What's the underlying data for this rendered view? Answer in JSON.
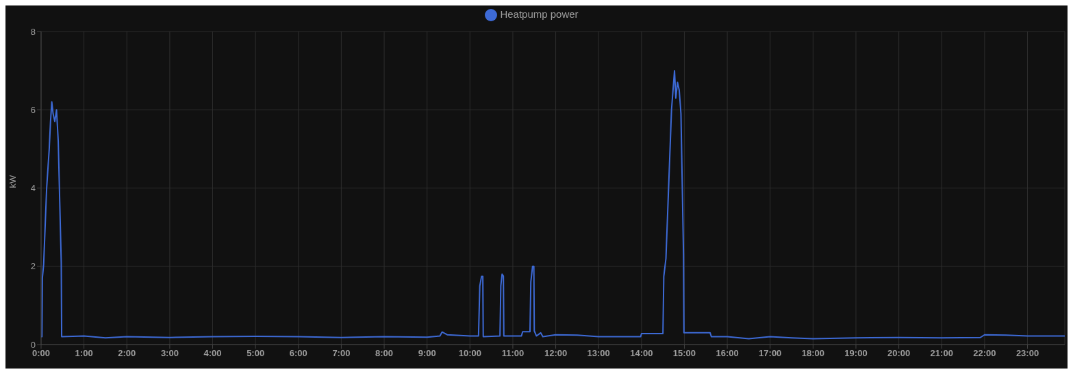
{
  "chart_data": {
    "type": "line",
    "ylabel": "kW",
    "xlim": [
      0,
      23.87
    ],
    "xticks": [
      {
        "value": 0,
        "label": "0:00"
      },
      {
        "value": 1,
        "label": "1:00"
      },
      {
        "value": 2,
        "label": "2:00"
      },
      {
        "value": 3,
        "label": "3:00"
      },
      {
        "value": 4,
        "label": "4:00"
      },
      {
        "value": 5,
        "label": "5:00"
      },
      {
        "value": 6,
        "label": "6:00"
      },
      {
        "value": 7,
        "label": "7:00"
      },
      {
        "value": 8,
        "label": "8:00"
      },
      {
        "value": 9,
        "label": "9:00"
      },
      {
        "value": 10,
        "label": "10:00"
      },
      {
        "value": 11,
        "label": "11:00"
      },
      {
        "value": 12,
        "label": "12:00"
      },
      {
        "value": 13,
        "label": "13:00"
      },
      {
        "value": 14,
        "label": "14:00"
      },
      {
        "value": 15,
        "label": "15:00"
      },
      {
        "value": 16,
        "label": "16:00"
      },
      {
        "value": 17,
        "label": "17:00"
      },
      {
        "value": 18,
        "label": "18:00"
      },
      {
        "value": 19,
        "label": "19:00"
      },
      {
        "value": 20,
        "label": "20:00"
      },
      {
        "value": 21,
        "label": "21:00"
      },
      {
        "value": 22,
        "label": "22:00"
      },
      {
        "value": 23,
        "label": "23:00"
      }
    ],
    "ylim": [
      0,
      8
    ],
    "yticks": [
      0,
      2,
      4,
      6,
      8
    ],
    "grid": true,
    "legend": "top",
    "marker": "none",
    "line_style": "solid",
    "x": [
      0,
      0.02,
      0.03,
      0.06,
      0.13,
      0.19,
      0.22,
      0.25,
      0.28,
      0.32,
      0.36,
      0.4,
      0.47,
      0.48,
      1,
      1.5,
      2,
      3,
      4,
      5,
      6,
      7,
      8,
      9,
      9.3,
      9.35,
      9.47,
      10,
      10.2,
      10.23,
      10.27,
      10.3,
      10.31,
      10.7,
      10.72,
      10.75,
      10.78,
      10.79,
      11.2,
      11.23,
      11.4,
      11.42,
      11.46,
      11.49,
      11.5,
      11.55,
      11.65,
      11.7,
      12,
      12.5,
      13,
      13.6,
      13.98,
      14,
      14.5,
      14.52,
      14.57,
      14.7,
      14.77,
      14.8,
      14.84,
      14.88,
      14.92,
      14.98,
      14.99,
      15.6,
      15.63,
      16,
      16.5,
      17,
      17.5,
      18,
      19,
      20,
      21,
      21.9,
      22,
      22.5,
      23,
      23.5,
      23.87
    ],
    "series": [
      {
        "name": "Heatpump power",
        "color": "#3d6ad6",
        "values": [
          0.2,
          0.2,
          1.7,
          2.05,
          4.0,
          5.0,
          5.7,
          6.2,
          5.9,
          5.7,
          6.0,
          5.2,
          2.1,
          0.2,
          0.22,
          0.17,
          0.2,
          0.18,
          0.2,
          0.21,
          0.2,
          0.18,
          0.2,
          0.19,
          0.22,
          0.32,
          0.25,
          0.22,
          0.22,
          1.5,
          1.74,
          1.74,
          0.2,
          0.22,
          1.5,
          1.8,
          1.75,
          0.22,
          0.22,
          0.33,
          0.33,
          1.6,
          2.0,
          2.0,
          0.35,
          0.22,
          0.3,
          0.2,
          0.25,
          0.24,
          0.2,
          0.2,
          0.2,
          0.28,
          0.28,
          1.74,
          2.2,
          6.0,
          7.0,
          6.3,
          6.7,
          6.5,
          5.9,
          2.3,
          0.3,
          0.3,
          0.2,
          0.2,
          0.15,
          0.2,
          0.17,
          0.15,
          0.17,
          0.18,
          0.17,
          0.18,
          0.25,
          0.24,
          0.22,
          0.22,
          0.22
        ]
      }
    ]
  }
}
